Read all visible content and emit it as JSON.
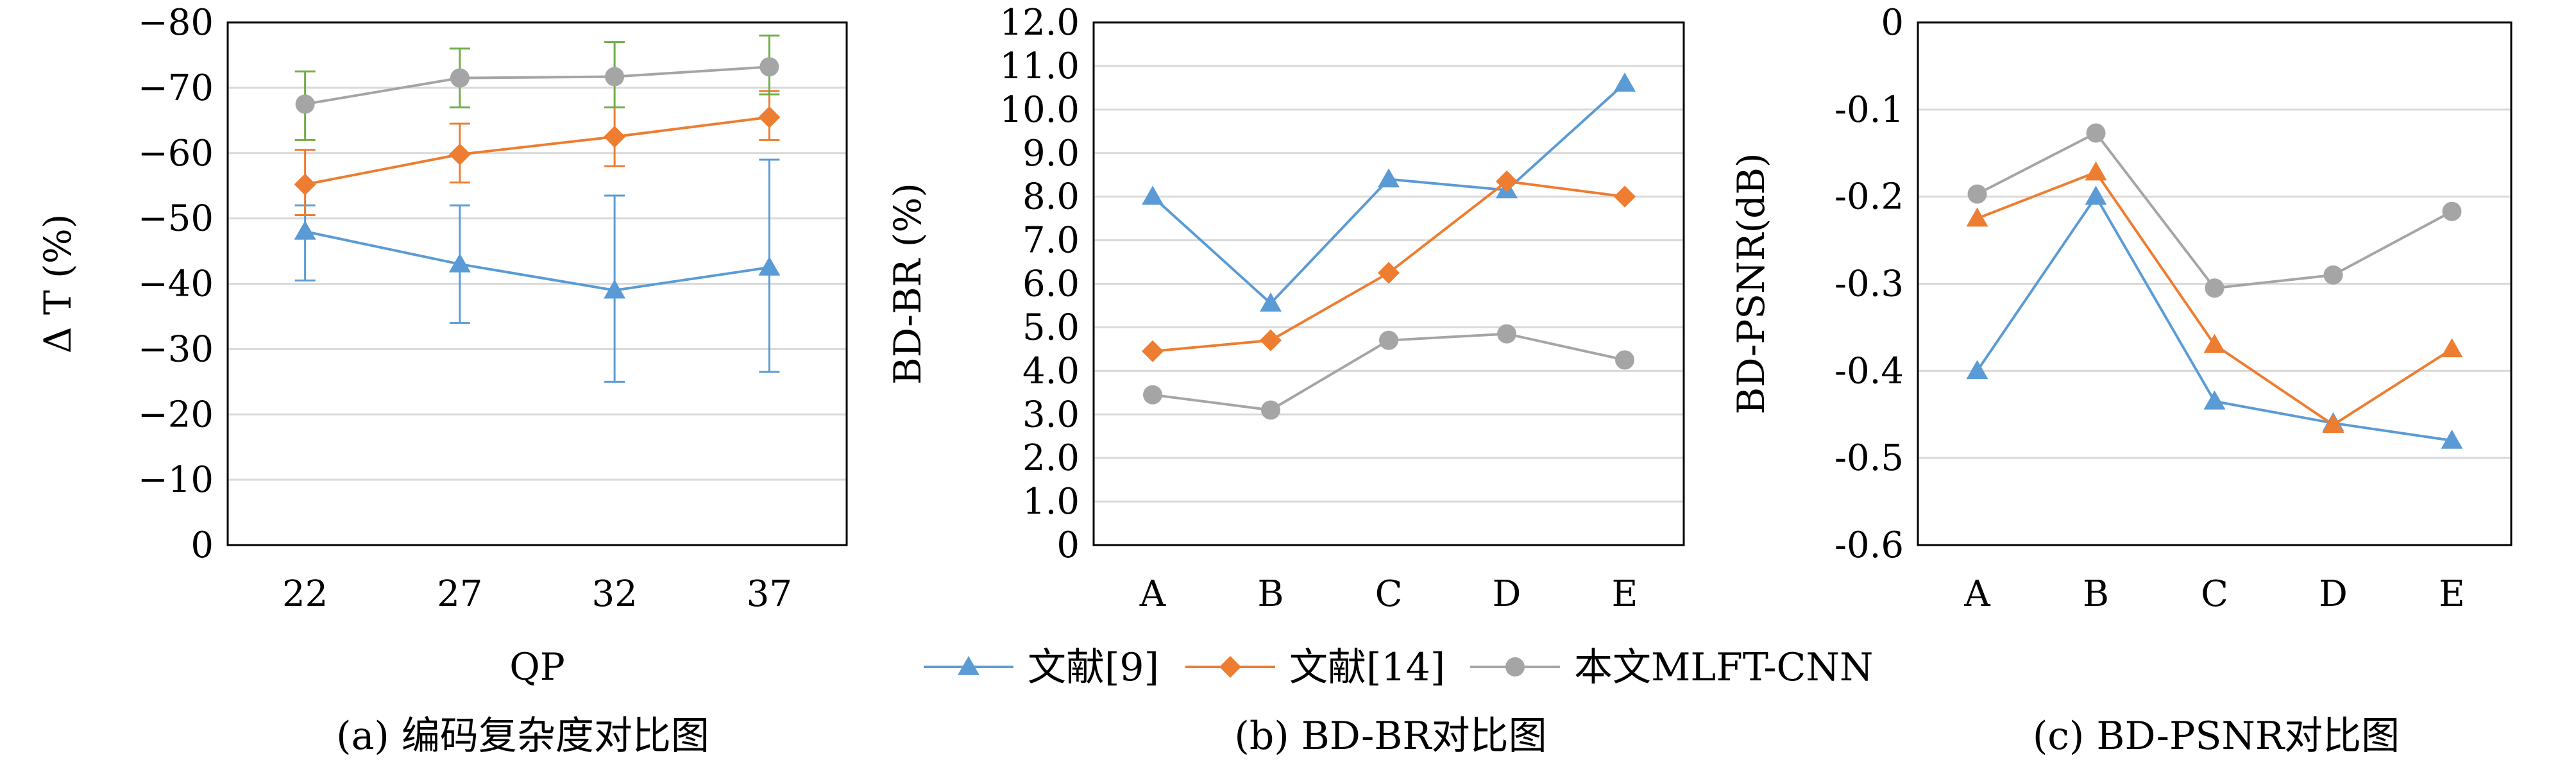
{
  "legend": [
    "文献[9]",
    "文献[14]",
    "本文MLFT-CNN"
  ],
  "colors": {
    "s1": "#5B9BD5",
    "s2": "#ED7D31",
    "s3": "#A5A5A5",
    "err_green": "#70AD47"
  },
  "chart_data": [
    {
      "type": "line",
      "caption": "(a) 编码复杂度对比图",
      "xlabel": "QP",
      "ylabel": "Δ T (%)",
      "categories": [
        "22",
        "27",
        "32",
        "37"
      ],
      "ylim": [
        0,
        -80
      ],
      "yticks": [
        0,
        -10,
        -20,
        -30,
        -40,
        -50,
        -60,
        -70,
        -80
      ],
      "ytick_labels": [
        "0",
        "−10",
        "−20",
        "−30",
        "−40",
        "−50",
        "−60",
        "−70",
        "−80"
      ],
      "series": [
        {
          "name": "文献[9]",
          "marker": "triangle",
          "values": [
            -48,
            -43,
            -39,
            -42.5
          ],
          "err_low": [
            -40.5,
            -34,
            -25,
            -26.5
          ],
          "err_high": [
            -52,
            -52,
            -53.5,
            -59
          ]
        },
        {
          "name": "文献[14]",
          "marker": "diamond",
          "values": [
            -55.2,
            -59.8,
            -62.5,
            -65.5
          ],
          "err_low": [
            -50.5,
            -55.5,
            -58,
            -62
          ],
          "err_high": [
            -60.5,
            -64.5,
            -67,
            -69.5
          ]
        },
        {
          "name": "本文MLFT-CNN",
          "marker": "circle",
          "values": [
            -67.5,
            -71.5,
            -71.7,
            -73.2
          ],
          "err_low": [
            -62,
            -67,
            -67,
            -69
          ],
          "err_high": [
            -72.5,
            -76,
            -77,
            -78
          ]
        }
      ]
    },
    {
      "type": "line",
      "caption": "(b) BD-BR对比图",
      "xlabel": "",
      "ylabel": "BD-BR (%)",
      "categories": [
        "A",
        "B",
        "C",
        "D",
        "E"
      ],
      "ylim": [
        0,
        12
      ],
      "yticks": [
        0,
        1,
        2,
        3,
        4,
        5,
        6,
        7,
        8,
        9,
        10,
        11,
        12
      ],
      "ytick_labels": [
        "0",
        "1.0",
        "2.0",
        "3.0",
        "4.0",
        "5.0",
        "6.0",
        "7.0",
        "8.0",
        "9.0",
        "10.0",
        "11.0",
        "12.0"
      ],
      "series": [
        {
          "name": "文献[9]",
          "marker": "triangle",
          "values": [
            8.0,
            5.55,
            8.4,
            8.15,
            10.6
          ]
        },
        {
          "name": "文献[14]",
          "marker": "diamond",
          "values": [
            4.45,
            4.7,
            6.25,
            8.35,
            8.0
          ]
        },
        {
          "name": "本文MLFT-CNN",
          "marker": "circle",
          "values": [
            3.45,
            3.1,
            4.7,
            4.85,
            4.25
          ]
        }
      ]
    },
    {
      "type": "line",
      "caption": "(c) BD-PSNR对比图",
      "xlabel": "",
      "ylabel": "BD-PSNR(dB)",
      "categories": [
        "A",
        "B",
        "C",
        "D",
        "E"
      ],
      "ylim": [
        -0.6,
        0
      ],
      "yticks": [
        0,
        -0.1,
        -0.2,
        -0.3,
        -0.4,
        -0.5,
        -0.6
      ],
      "ytick_labels": [
        "0",
        "-0.1",
        "-0.2",
        "-0.3",
        "-0.4",
        "-0.5",
        "-0.6"
      ],
      "series": [
        {
          "name": "文献[9]",
          "marker": "triangle",
          "values": [
            -0.4,
            -0.2,
            -0.435,
            -0.46,
            -0.48
          ]
        },
        {
          "name": "文献[14]",
          "marker": "triangle",
          "values": [
            -0.225,
            -0.172,
            -0.37,
            -0.462,
            -0.375
          ]
        },
        {
          "name": "本文MLFT-CNN",
          "marker": "circle",
          "values": [
            -0.197,
            -0.127,
            -0.305,
            -0.29,
            -0.217
          ]
        }
      ]
    }
  ]
}
